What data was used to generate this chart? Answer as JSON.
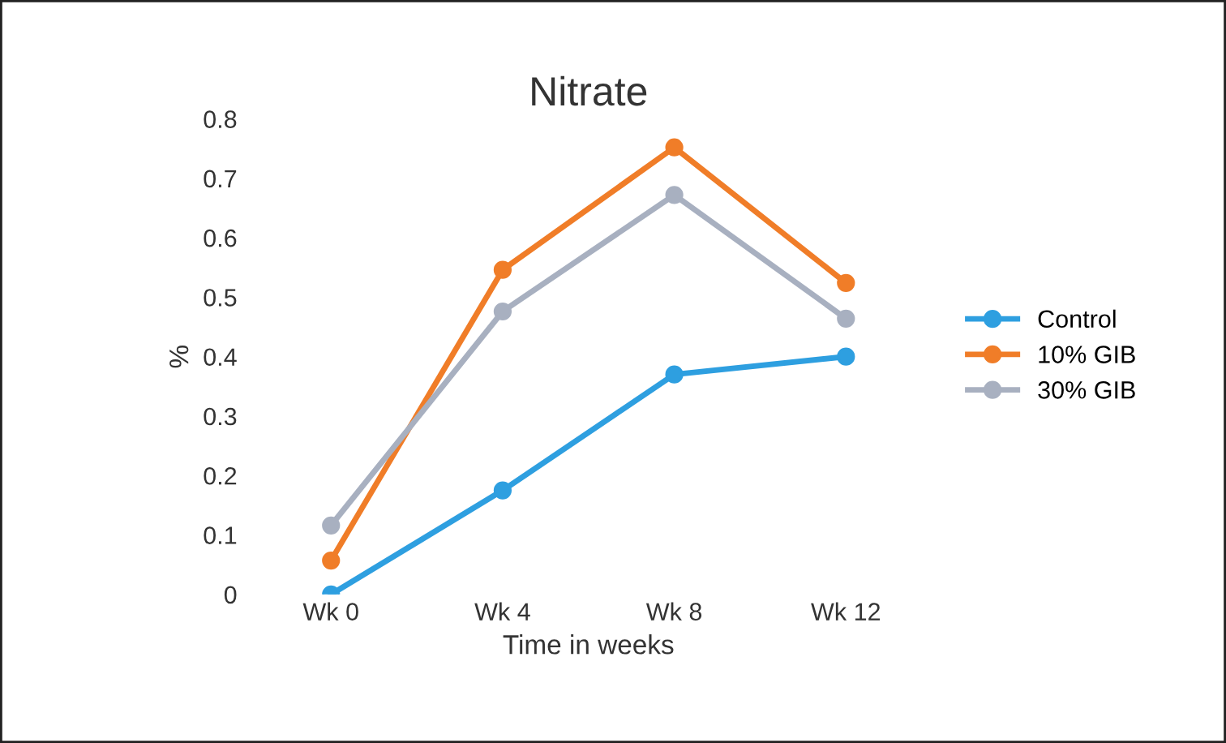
{
  "chart_data": {
    "type": "line",
    "title": "Nitrate",
    "xlabel": "Time in weeks",
    "ylabel": "%",
    "categories": [
      "Wk 0",
      "Wk 4",
      "Wk 8",
      "Wk 12"
    ],
    "series": [
      {
        "name": "Control",
        "color": "#2e9fe0",
        "values": [
          0,
          0.175,
          0.37,
          0.4
        ]
      },
      {
        "name": "10% GIB",
        "color": "#f07d28",
        "values": [
          0.057,
          0.546,
          0.752,
          0.524
        ]
      },
      {
        "name": "30% GIB",
        "color": "#a8b0c0",
        "values": [
          0.116,
          0.476,
          0.672,
          0.464
        ]
      }
    ],
    "ylim": [
      0,
      0.8
    ],
    "yticks": [
      0,
      0.1,
      0.2,
      0.3,
      0.4,
      0.5,
      0.6,
      0.7,
      0.8
    ],
    "grid": false,
    "legend": "right",
    "marker": "circle",
    "line_style": "solid"
  }
}
